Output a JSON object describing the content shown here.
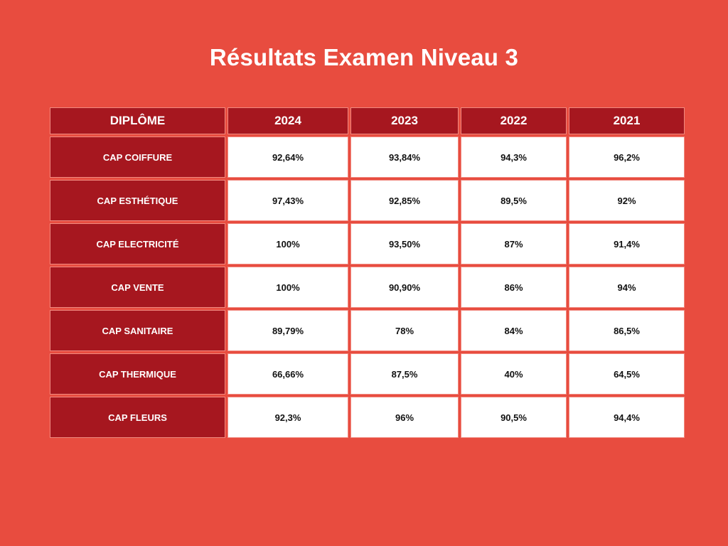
{
  "title": "Résultats Examen Niveau 3",
  "table": {
    "headers": [
      "DIPLÔME",
      "2024",
      "2023",
      "2022",
      "2021"
    ],
    "rows": [
      {
        "label": "CAP COIFFURE",
        "values": [
          "92,64%",
          "93,84%",
          "94,3%",
          "96,2%"
        ]
      },
      {
        "label": "CAP ESTHÉTIQUE",
        "values": [
          "97,43%",
          "92,85%",
          "89,5%",
          "92%"
        ]
      },
      {
        "label": "CAP ELECTRICITÉ",
        "values": [
          "100%",
          "93,50%",
          "87%",
          "91,4%"
        ]
      },
      {
        "label": "CAP VENTE",
        "values": [
          "100%",
          "90,90%",
          "86%",
          "94%"
        ]
      },
      {
        "label": "CAP SANITAIRE",
        "values": [
          "89,79%",
          "78%",
          "84%",
          "86,5%"
        ]
      },
      {
        "label": "CAP THERMIQUE",
        "values": [
          "66,66%",
          "87,5%",
          "40%",
          "64,5%"
        ]
      },
      {
        "label": "CAP FLEURS",
        "values": [
          "92,3%",
          "96%",
          "90,5%",
          "94,4%"
        ]
      }
    ]
  },
  "colors": {
    "background": "#e84c3f",
    "header_cell": "#a6171f",
    "value_cell": "#ffffff",
    "cell_border": "#f08a80"
  }
}
